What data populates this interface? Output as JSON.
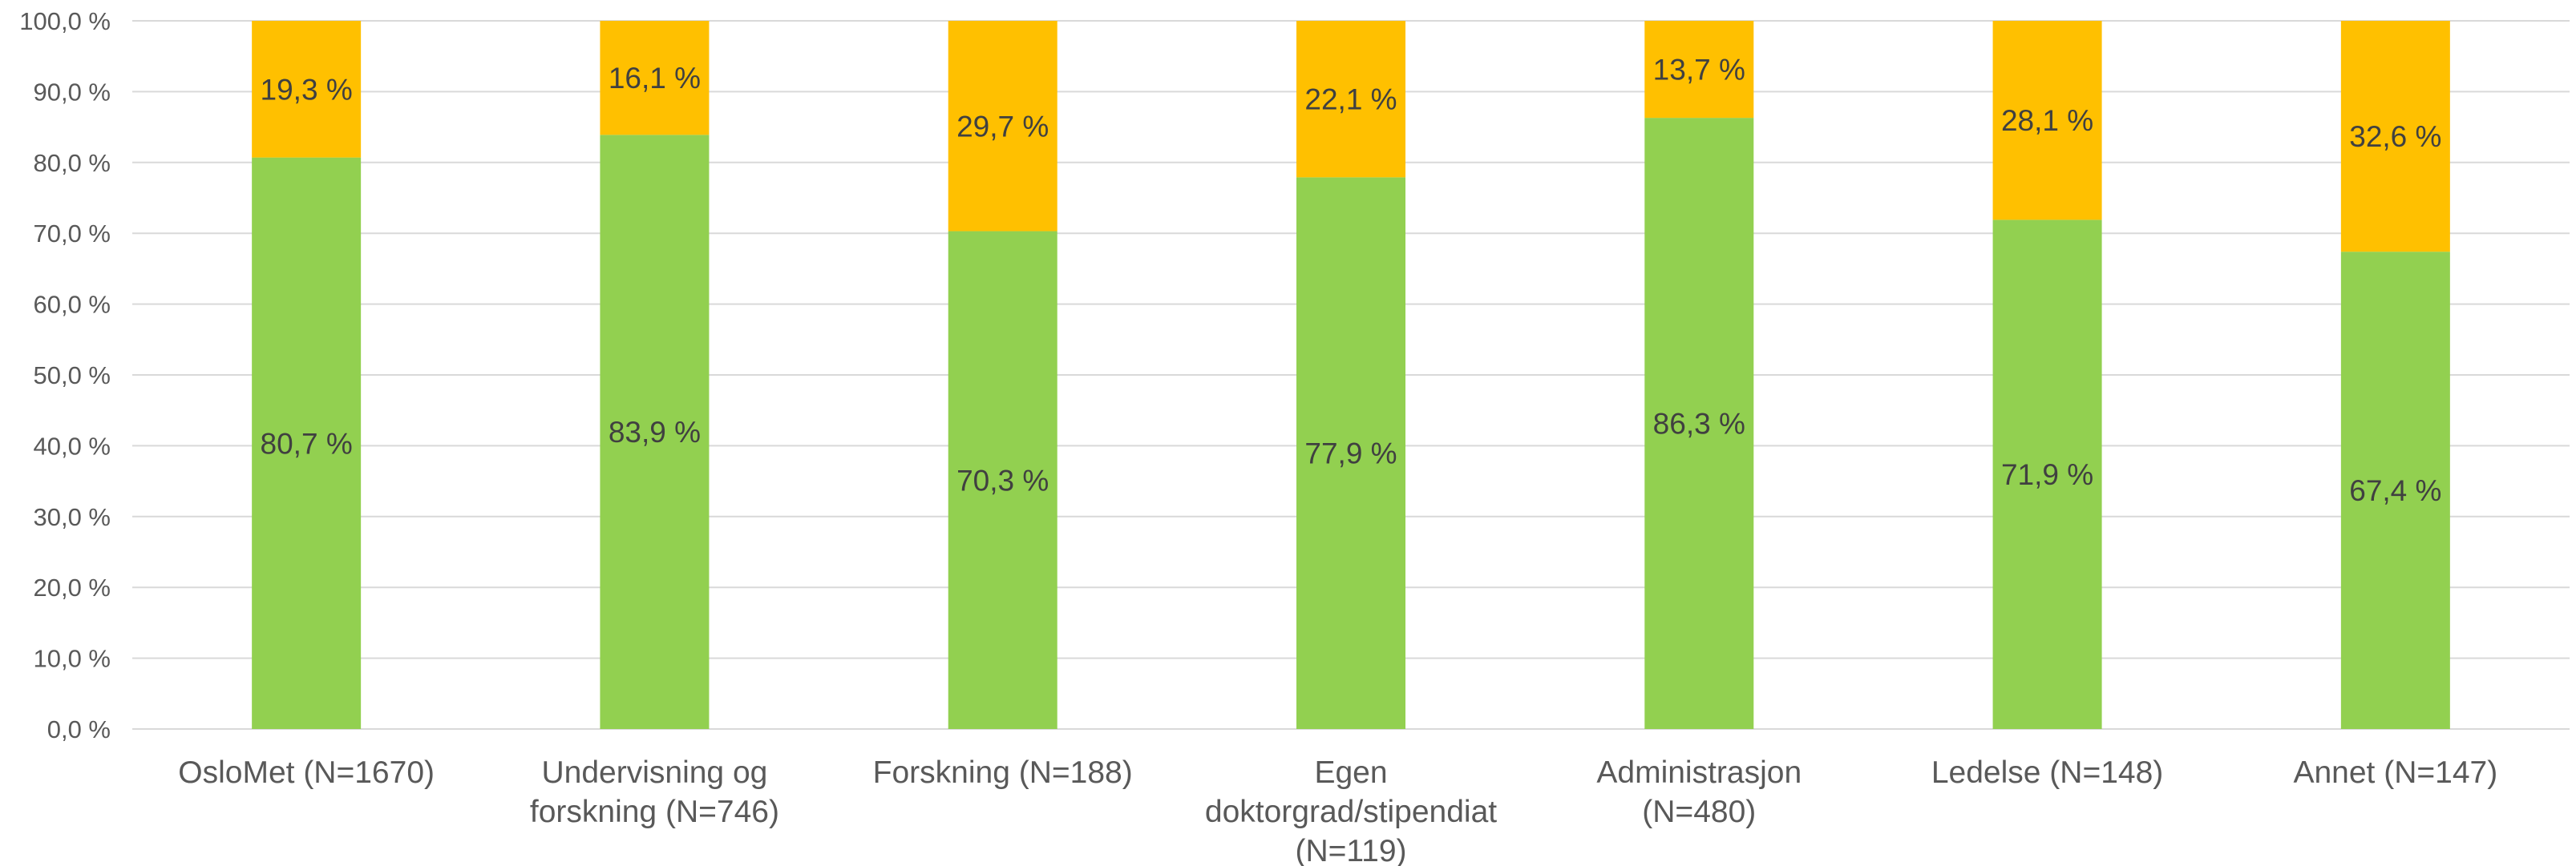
{
  "chart_data": {
    "type": "bar",
    "stacked": true,
    "categories": [
      "OsloMet (N=1670)",
      "Undervisning og forskning (N=746)",
      "Forskning (N=188)",
      "Egen doktorgrad/stipendiat (N=119)",
      "Administrasjon (N=480)",
      "Ledelse (N=148)",
      "Annet (N=147)"
    ],
    "category_lines": [
      [
        "OsloMet (N=1670)"
      ],
      [
        "Undervisning og",
        "forskning (N=746)"
      ],
      [
        "Forskning (N=188)"
      ],
      [
        "Egen",
        "doktorgrad/stipendiat",
        "(N=119)"
      ],
      [
        "Administrasjon",
        "(N=480)"
      ],
      [
        "Ledelse (N=148)"
      ],
      [
        "Annet (N=147)"
      ]
    ],
    "series": [
      {
        "values": [
          80.7,
          83.9,
          70.3,
          77.9,
          86.3,
          71.9,
          67.4
        ],
        "labels": [
          "80,7 %",
          "83,9 %",
          "70,3 %",
          "77,9 %",
          "86,3 %",
          "71,9 %",
          "67,4 %"
        ],
        "color": "#92d050"
      },
      {
        "values": [
          19.3,
          16.1,
          29.7,
          22.1,
          13.7,
          28.1,
          32.6
        ],
        "labels": [
          "19,3 %",
          "16,1 %",
          "29,7 %",
          "22,1 %",
          "13,7 %",
          "28,1 %",
          "32,6 %"
        ],
        "color": "#ffc000"
      }
    ],
    "yticks": [
      0,
      10,
      20,
      30,
      40,
      50,
      60,
      70,
      80,
      90,
      100
    ],
    "ytick_labels": [
      "0,0 %",
      "10,0 %",
      "20,0 %",
      "30,0 %",
      "40,0 %",
      "50,0 %",
      "60,0 %",
      "70,0 %",
      "80,0 %",
      "90,0 %",
      "100,0 %"
    ],
    "ylim": [
      0,
      100
    ],
    "grid": true,
    "legend": "none",
    "title": "",
    "xlabel": "",
    "ylabel": ""
  }
}
